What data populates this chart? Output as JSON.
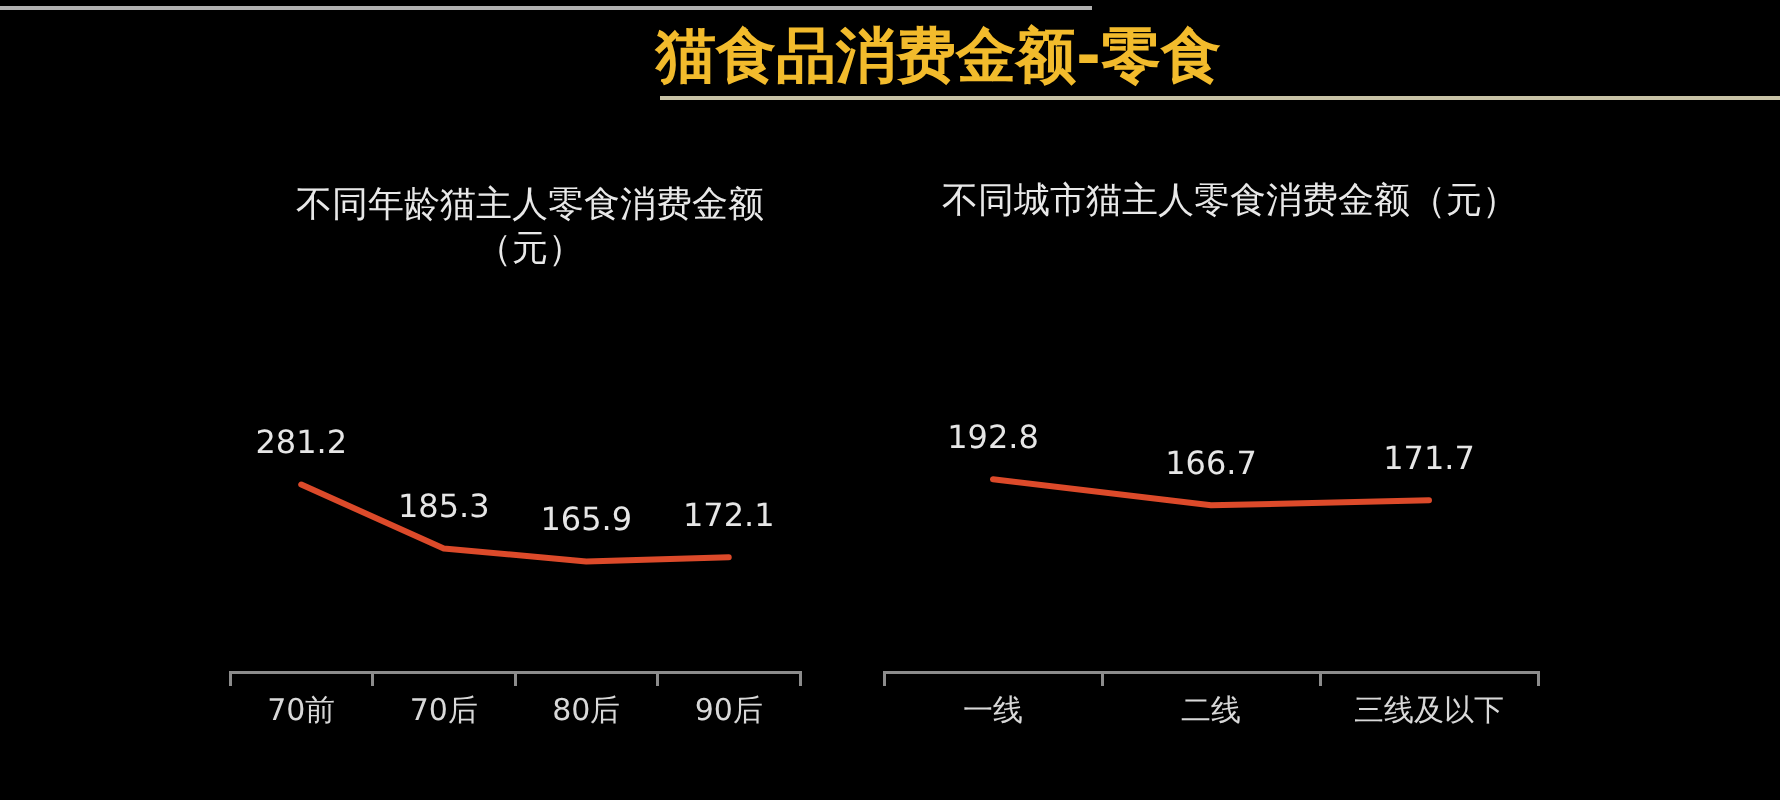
{
  "chart_data": [
    {
      "type": "other",
      "title": "猫食品消费金额-零食"
    },
    {
      "type": "line",
      "title": "不同年龄猫主人零食消费金额（元）",
      "categories": [
        "70前",
        "70后",
        "80后",
        "90后"
      ],
      "values": [
        281.2,
        185.3,
        165.9,
        172.1
      ],
      "color": "#dc4a2a",
      "data_labels": true,
      "marker": "none",
      "grid": false,
      "legend": false
    },
    {
      "type": "line",
      "title": "不同城市猫主人零食消费金额（元）",
      "categories": [
        "一线",
        "二线",
        "三线及以下"
      ],
      "values": [
        192.8,
        166.7,
        171.7
      ],
      "color": "#dc4a2a",
      "data_labels": true,
      "marker": "none",
      "grid": false,
      "legend": false
    }
  ]
}
